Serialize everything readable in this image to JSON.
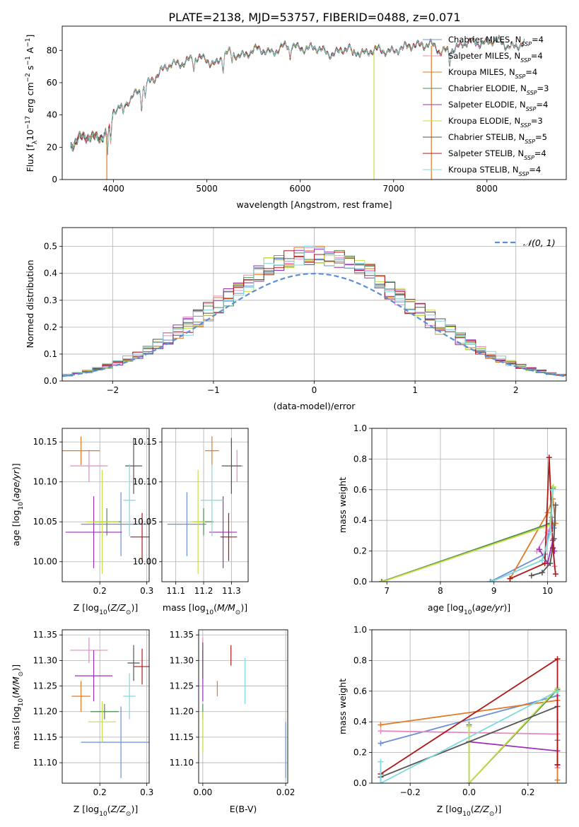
{
  "figure_title": "PLATE=2138, MJD=53757, FIBERID=0488, z=0.071",
  "series_colors": {
    "Chabrier MILES": "#6a8fd8",
    "Salpeter MILES": "#e58ac0",
    "Kroupa MILES": "#e07b26",
    "Chabrier ELODIE": "#4d8a50",
    "Salpeter ELODIE": "#9b30b8",
    "Kroupa ELODIE": "#c4de45",
    "Chabrier STELIB": "#555555",
    "Salpeter STELIB": "#b01818",
    "Kroupa STELIB": "#7fd8de"
  },
  "chart_data": [
    {
      "id": "spectrum",
      "type": "line",
      "xlabel": "wavelength [Angstrom, rest frame]",
      "ylabel": "Flux [f_λ 10^-17 erg cm^-2 s^-1 A^-1]",
      "xlim": [
        3450,
        8850
      ],
      "ylim": [
        0,
        95
      ],
      "xticks": [
        4000,
        5000,
        6000,
        7000,
        8000
      ],
      "yticks": [
        0,
        20,
        40,
        60,
        80
      ],
      "grid": false,
      "legend_position": "upper right",
      "legend": [
        {
          "model": "Chabrier MILES",
          "nssp": "4"
        },
        {
          "model": "Salpeter MILES",
          "nssp": "4"
        },
        {
          "model": "Kroupa MILES",
          "nssp": "4"
        },
        {
          "model": "Chabrier ELODIE",
          "nssp": "3"
        },
        {
          "model": "Salpeter ELODIE",
          "nssp": "4"
        },
        {
          "model": "Kroupa ELODIE",
          "nssp": "3"
        },
        {
          "model": "Chabrier STELIB",
          "nssp": "5"
        },
        {
          "model": "Salpeter STELIB",
          "nssp": "4"
        },
        {
          "model": "Kroupa STELIB",
          "nssp": "4"
        }
      ],
      "continuum": {
        "x": [
          3550,
          3600,
          3650,
          3700,
          3750,
          3800,
          3850,
          3900,
          3950,
          4000,
          4050,
          4100,
          4200,
          4300,
          4400,
          4500,
          4600,
          4700,
          4800,
          4900,
          5000,
          5100,
          5200,
          5300,
          5400,
          5500,
          5600,
          5700,
          5800,
          5900,
          6000,
          6100,
          6200,
          6300,
          6400,
          6500,
          6600,
          6700,
          6800,
          6900,
          7000,
          7100,
          7200,
          7300,
          7400,
          7500,
          7600,
          7700,
          7800,
          7900,
          8000,
          8100,
          8200,
          8300,
          8400
        ],
        "y": [
          20,
          23,
          25,
          27,
          28,
          27,
          26,
          26,
          30,
          43,
          45,
          47,
          50,
          55,
          63,
          66,
          70,
          73,
          74,
          74,
          75,
          72,
          77,
          78,
          78,
          79,
          80,
          80,
          81,
          82,
          83,
          81,
          80,
          79,
          79,
          80,
          80,
          79,
          79,
          80,
          81,
          80,
          83,
          85,
          83,
          78,
          82,
          82,
          84,
          86,
          85,
          85,
          84,
          83,
          83
        ]
      },
      "dips": [
        {
          "x": 3934,
          "depth": 14
        },
        {
          "x": 3969,
          "depth": 12
        },
        {
          "x": 4101,
          "depth": 6
        },
        {
          "x": 4300,
          "depth": 10
        },
        {
          "x": 4340,
          "depth": 6
        },
        {
          "x": 4861,
          "depth": 6
        },
        {
          "x": 5175,
          "depth": 8
        },
        {
          "x": 5270,
          "depth": 5
        },
        {
          "x": 5890,
          "depth": 7
        },
        {
          "x": 6563,
          "depth": 4
        },
        {
          "x": 7600,
          "depth": 8
        }
      ],
      "spikes": [
        {
          "x": 3928,
          "series": "Kroupa MILES"
        },
        {
          "x": 6790,
          "series": "Kroupa ELODIE"
        },
        {
          "x": 7405,
          "series": "Kroupa MILES"
        }
      ]
    },
    {
      "id": "residuals",
      "type": "histogram",
      "xlabel": "(data-model)/error",
      "ylabel": "Normed distribution",
      "xlim": [
        -2.5,
        2.5
      ],
      "ylim": [
        0,
        0.57
      ],
      "xticks": [
        -2,
        -1,
        0,
        1,
        2
      ],
      "yticks": [
        0.0,
        0.1,
        0.2,
        0.3,
        0.4,
        0.5
      ],
      "grid": true,
      "bin_width": 0.1,
      "reference_curve": {
        "label": "𝒩(0, 1)",
        "mean": 0,
        "sigma": 1,
        "color": "#5b8fd8",
        "style": "dashed"
      },
      "legend_position": "upper right"
    },
    {
      "id": "age_vs_Z",
      "type": "errorbar",
      "xlabel": "Z [log10(Z/Z⊙)]",
      "ylabel": "age [log10(age/yr)]",
      "xlim": [
        0.12,
        0.305
      ],
      "ylim": [
        9.975,
        10.167
      ],
      "xticks": [
        0.2,
        0.3
      ],
      "yticks": [
        10.0,
        10.05,
        10.1,
        10.15
      ],
      "grid": true,
      "points": [
        {
          "series": "Chabrier MILES",
          "x": 0.245,
          "xerr": 0.085,
          "y": 10.047,
          "yerr": 0.04
        },
        {
          "series": "Salpeter MILES",
          "x": 0.177,
          "xerr": 0.04,
          "y": 10.12,
          "yerr": 0.02
        },
        {
          "series": "Kroupa MILES",
          "x": 0.16,
          "xerr": 0.04,
          "y": 10.139,
          "yerr": 0.018
        },
        {
          "series": "Chabrier ELODIE",
          "x": 0.215,
          "xerr": 0.03,
          "y": 10.05,
          "yerr": 0.017
        },
        {
          "series": "Salpeter ELODIE",
          "x": 0.187,
          "xerr": 0.06,
          "y": 10.037,
          "yerr": 0.045
        },
        {
          "series": "Kroupa ELODIE",
          "x": 0.205,
          "xerr": 0.035,
          "y": 10.05,
          "yerr": 0.065
        },
        {
          "series": "Chabrier STELIB",
          "x": 0.272,
          "xerr": 0.018,
          "y": 10.12,
          "yerr": 0.035
        },
        {
          "series": "Salpeter STELIB",
          "x": 0.29,
          "xerr": 0.025,
          "y": 10.031,
          "yerr": 0.03
        },
        {
          "series": "Kroupa STELIB",
          "x": 0.263,
          "xerr": 0.013,
          "y": 10.077,
          "yerr": 0.045
        }
      ]
    },
    {
      "id": "age_vs_mass",
      "type": "errorbar",
      "xlabel": "mass [log10(M/M⊙)]",
      "ylabel": "",
      "xlim": [
        11.05,
        11.36
      ],
      "ylim": [
        9.975,
        10.167
      ],
      "xticks": [
        11.1,
        11.2,
        11.3
      ],
      "yticks": [
        10.0,
        10.05,
        10.1,
        10.15
      ],
      "grid": true,
      "points": [
        {
          "series": "Chabrier MILES",
          "x": 11.14,
          "xerr": 0.07,
          "y": 10.047,
          "yerr": 0.04
        },
        {
          "series": "Salpeter MILES",
          "x": 11.32,
          "xerr": 0.022,
          "y": 10.12,
          "yerr": 0.02
        },
        {
          "series": "Kroupa MILES",
          "x": 11.23,
          "xerr": 0.025,
          "y": 10.139,
          "yerr": 0.018
        },
        {
          "series": "Chabrier ELODIE",
          "x": 11.2,
          "xerr": 0.035,
          "y": 10.05,
          "yerr": 0.017
        },
        {
          "series": "Salpeter ELODIE",
          "x": 11.27,
          "xerr": 0.05,
          "y": 10.037,
          "yerr": 0.045
        },
        {
          "series": "Kroupa ELODIE",
          "x": 11.18,
          "xerr": 0.025,
          "y": 10.05,
          "yerr": 0.065
        },
        {
          "series": "Chabrier STELIB",
          "x": 11.3,
          "xerr": 0.035,
          "y": 10.12,
          "yerr": 0.035
        },
        {
          "series": "Salpeter STELIB",
          "x": 11.29,
          "xerr": 0.03,
          "y": 10.031,
          "yerr": 0.03
        },
        {
          "series": "Kroupa STELIB",
          "x": 11.23,
          "xerr": 0.04,
          "y": 10.077,
          "yerr": 0.045
        }
      ]
    },
    {
      "id": "weight_vs_age",
      "type": "line",
      "xlabel": "age [log10(age/yr)]",
      "ylabel": "mass weight",
      "xlim": [
        6.72,
        10.35
      ],
      "ylim": [
        0,
        1.0
      ],
      "xticks": [
        7,
        8,
        9,
        10
      ],
      "yticks": [
        0.0,
        0.2,
        0.4,
        0.6,
        0.8,
        1.0
      ],
      "grid": true,
      "series": [
        {
          "name": "Chabrier MILES",
          "x": [
            8.93,
            9.95,
            10.08,
            10.12
          ],
          "y": [
            0.0,
            0.18,
            0.42,
            0.35
          ]
        },
        {
          "name": "Salpeter MILES",
          "x": [
            9.8,
            10.0,
            10.08,
            10.13
          ],
          "y": [
            0.2,
            0.32,
            0.38,
            0.1
          ]
        },
        {
          "name": "Kroupa MILES",
          "x": [
            9.3,
            10.0,
            10.1,
            10.15
          ],
          "y": [
            0.02,
            0.45,
            0.54,
            0.38
          ]
        },
        {
          "name": "Chabrier ELODIE",
          "x": [
            6.9,
            10.05,
            10.1
          ],
          "y": [
            0.0,
            0.38,
            0.61
          ]
        },
        {
          "name": "Salpeter ELODIE",
          "x": [
            9.85,
            10.0,
            10.1,
            10.13
          ],
          "y": [
            0.21,
            0.12,
            0.27,
            0.2
          ]
        },
        {
          "name": "Kroupa ELODIE",
          "x": [
            6.92,
            10.05,
            10.11
          ],
          "y": [
            0.0,
            0.37,
            0.62
          ]
        },
        {
          "name": "Chabrier STELIB",
          "x": [
            9.7,
            9.9,
            10.05,
            10.12,
            10.15
          ],
          "y": [
            0.04,
            0.06,
            0.12,
            0.28,
            0.5
          ]
        },
        {
          "name": "Salpeter STELIB",
          "x": [
            9.3,
            9.95,
            10.03,
            10.1,
            10.15
          ],
          "y": [
            0.02,
            0.12,
            0.81,
            0.22,
            0.05
          ]
        },
        {
          "name": "Kroupa STELIB",
          "x": [
            8.95,
            9.9,
            10.05,
            10.1
          ],
          "y": [
            0.0,
            0.14,
            0.32,
            0.6
          ]
        }
      ]
    },
    {
      "id": "mass_vs_Z",
      "type": "errorbar",
      "xlabel": "Z [log10(Z/Z⊙)]",
      "ylabel": "mass [log10(M/M⊙)]",
      "xlim": [
        0.12,
        0.305
      ],
      "ylim": [
        11.06,
        11.36
      ],
      "xticks": [
        0.2,
        0.3
      ],
      "yticks": [
        11.1,
        11.15,
        11.2,
        11.25,
        11.3,
        11.35
      ],
      "grid": true,
      "points": [
        {
          "series": "Chabrier MILES",
          "x": 0.245,
          "xerr": 0.085,
          "y": 11.14,
          "yerr": 0.07
        },
        {
          "series": "Salpeter MILES",
          "x": 0.177,
          "xerr": 0.04,
          "y": 11.32,
          "yerr": 0.025
        },
        {
          "series": "Kroupa MILES",
          "x": 0.16,
          "xerr": 0.02,
          "y": 11.23,
          "yerr": 0.03
        },
        {
          "series": "Chabrier ELODIE",
          "x": 0.21,
          "xerr": 0.03,
          "y": 11.2,
          "yerr": 0.015
        },
        {
          "series": "Salpeter ELODIE",
          "x": 0.187,
          "xerr": 0.04,
          "y": 11.27,
          "yerr": 0.05
        },
        {
          "series": "Kroupa ELODIE",
          "x": 0.205,
          "xerr": 0.03,
          "y": 11.18,
          "yerr": 0.04
        },
        {
          "series": "Chabrier STELIB",
          "x": 0.272,
          "xerr": 0.013,
          "y": 11.295,
          "yerr": 0.035
        },
        {
          "series": "Salpeter STELIB",
          "x": 0.29,
          "xerr": 0.018,
          "y": 11.288,
          "yerr": 0.035
        },
        {
          "series": "Kroupa STELIB",
          "x": 0.263,
          "xerr": 0.013,
          "y": 11.23,
          "yerr": 0.045
        }
      ]
    },
    {
      "id": "mass_vs_ebv",
      "type": "errorbar",
      "xlabel": "E(B-V)",
      "ylabel": "",
      "xlim": [
        -0.001,
        0.0205
      ],
      "ylim": [
        11.06,
        11.36
      ],
      "xticks": [
        0.0,
        0.02
      ],
      "yticks": [
        11.1,
        11.15,
        11.2,
        11.25,
        11.3,
        11.35
      ],
      "grid": true,
      "points": [
        {
          "series": "Chabrier MILES",
          "x": 0.02,
          "xerr": 0,
          "y": 11.125,
          "yerr": 0.055
        },
        {
          "series": "Salpeter MILES",
          "x": 0.0,
          "xerr": 0,
          "y": 11.32,
          "yerr": 0.025
        },
        {
          "series": "Kroupa MILES",
          "x": 0.0035,
          "xerr": 0,
          "y": 11.245,
          "yerr": 0.015
        },
        {
          "series": "Chabrier ELODIE",
          "x": 0.0,
          "xerr": 0,
          "y": 11.2,
          "yerr": 0.015
        },
        {
          "series": "Salpeter ELODIE",
          "x": 0.0,
          "xerr": 0,
          "y": 11.27,
          "yerr": 0.05
        },
        {
          "series": "Kroupa ELODIE",
          "x": 0.0,
          "xerr": 0,
          "y": 11.16,
          "yerr": 0.04
        },
        {
          "series": "Chabrier STELIB",
          "x": 0.0,
          "xerr": 0,
          "y": 11.3,
          "yerr": 0.035
        },
        {
          "series": "Salpeter STELIB",
          "x": 0.0068,
          "xerr": 0,
          "y": 11.31,
          "yerr": 0.02
        },
        {
          "series": "Kroupa STELIB",
          "x": 0.0102,
          "xerr": 0,
          "y": 11.26,
          "yerr": 0.045
        }
      ]
    },
    {
      "id": "weight_vs_Z",
      "type": "line",
      "xlabel": "Z [log10(Z/Z⊙)]",
      "ylabel": "mass weight",
      "xlim": [
        -0.33,
        0.33
      ],
      "ylim": [
        0,
        1.0
      ],
      "xticks": [
        -0.2,
        0.0,
        0.2
      ],
      "yticks": [
        0.0,
        0.2,
        0.4,
        0.6,
        0.8,
        1.0
      ],
      "grid": true,
      "series": [
        {
          "name": "Chabrier MILES",
          "x": [
            -0.3,
            0.3,
            0.3
          ],
          "y": [
            0.26,
            0.57,
            0.28
          ]
        },
        {
          "name": "Salpeter MILES",
          "x": [
            -0.3,
            0.3,
            0.3
          ],
          "y": [
            0.34,
            0.32,
            0.1
          ]
        },
        {
          "name": "Kroupa MILES",
          "x": [
            -0.3,
            0.3,
            0.3
          ],
          "y": [
            0.38,
            0.54,
            0.02
          ]
        },
        {
          "name": "Chabrier ELODIE",
          "x": [
            0.0,
            0.0,
            0.3
          ],
          "y": [
            0.38,
            0.0,
            0.61
          ]
        },
        {
          "name": "Salpeter ELODIE",
          "x": [
            0.0,
            0.3,
            0.3
          ],
          "y": [
            0.27,
            0.21,
            0.12
          ]
        },
        {
          "name": "Kroupa ELODIE",
          "x": [
            0.0,
            0.0,
            0.3
          ],
          "y": [
            0.37,
            0.0,
            0.62
          ]
        },
        {
          "name": "Chabrier STELIB",
          "x": [
            -0.3,
            0.3,
            0.3
          ],
          "y": [
            0.04,
            0.5,
            0.12
          ]
        },
        {
          "name": "Salpeter STELIB",
          "x": [
            -0.3,
            0.3,
            0.3
          ],
          "y": [
            0.06,
            0.81,
            0.12
          ]
        },
        {
          "name": "Kroupa STELIB",
          "x": [
            -0.3,
            -0.3,
            0.3
          ],
          "y": [
            0.14,
            0.0,
            0.6
          ]
        }
      ]
    }
  ]
}
